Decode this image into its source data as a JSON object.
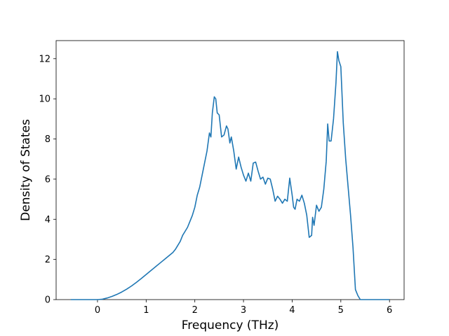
{
  "chart_data": {
    "type": "line",
    "title": "",
    "xlabel": "Frequency (THz)",
    "ylabel": "Density of States",
    "xlim": [
      -0.85,
      6.3
    ],
    "ylim": [
      0,
      12.9
    ],
    "xticks": [
      0,
      1,
      2,
      3,
      4,
      5,
      6
    ],
    "yticks": [
      0,
      2,
      4,
      6,
      8,
      10,
      12
    ],
    "grid": false,
    "line_color": "#1f77b4",
    "series": [
      {
        "x": [
          -0.55,
          -0.3,
          0.0,
          0.1,
          0.2,
          0.3,
          0.4,
          0.5,
          0.6,
          0.7,
          0.8,
          0.9,
          1.0,
          1.1,
          1.2,
          1.3,
          1.4,
          1.45,
          1.5,
          1.55,
          1.6,
          1.65,
          1.7,
          1.75,
          1.8,
          1.85,
          1.9,
          1.95,
          2.0,
          2.05,
          2.1,
          2.15,
          2.2,
          2.25,
          2.3,
          2.33,
          2.36,
          2.4,
          2.43,
          2.46,
          2.5,
          2.55,
          2.6,
          2.65,
          2.68,
          2.72,
          2.75,
          2.8,
          2.85,
          2.9,
          2.95,
          3.0,
          3.05,
          3.1,
          3.15,
          3.2,
          3.25,
          3.3,
          3.35,
          3.4,
          3.45,
          3.5,
          3.55,
          3.6,
          3.65,
          3.7,
          3.75,
          3.8,
          3.85,
          3.9,
          3.95,
          4.0,
          4.03,
          4.06,
          4.1,
          4.15,
          4.2,
          4.25,
          4.3,
          4.35,
          4.4,
          4.42,
          4.45,
          4.5,
          4.55,
          4.6,
          4.65,
          4.7,
          4.73,
          4.76,
          4.8,
          4.85,
          4.9,
          4.93,
          4.96,
          5.0,
          5.05,
          5.1,
          5.15,
          5.2,
          5.25,
          5.3,
          5.35,
          5.4,
          5.5,
          6.0
        ],
        "y": [
          0,
          0,
          0,
          0.02,
          0.08,
          0.16,
          0.26,
          0.38,
          0.52,
          0.68,
          0.86,
          1.05,
          1.25,
          1.45,
          1.65,
          1.85,
          2.05,
          2.15,
          2.25,
          2.35,
          2.5,
          2.7,
          2.9,
          3.2,
          3.4,
          3.6,
          3.9,
          4.2,
          4.6,
          5.2,
          5.6,
          6.2,
          6.8,
          7.4,
          8.3,
          8.1,
          9.3,
          10.1,
          10.0,
          9.3,
          9.2,
          8.1,
          8.2,
          8.65,
          8.5,
          7.8,
          8.1,
          7.4,
          6.5,
          7.1,
          6.6,
          6.2,
          5.9,
          6.3,
          5.9,
          6.8,
          6.85,
          6.4,
          6.0,
          6.1,
          5.75,
          6.05,
          6.0,
          5.5,
          4.9,
          5.15,
          5.0,
          4.8,
          5.0,
          4.9,
          6.05,
          5.2,
          4.6,
          4.5,
          5.0,
          4.9,
          5.2,
          4.8,
          4.2,
          3.1,
          3.2,
          4.1,
          3.7,
          4.7,
          4.4,
          4.6,
          5.5,
          6.9,
          8.75,
          7.9,
          7.9,
          9.0,
          10.8,
          12.35,
          11.9,
          11.6,
          8.8,
          7.0,
          5.6,
          4.2,
          2.6,
          0.5,
          0.2,
          0,
          0,
          0
        ]
      }
    ]
  }
}
